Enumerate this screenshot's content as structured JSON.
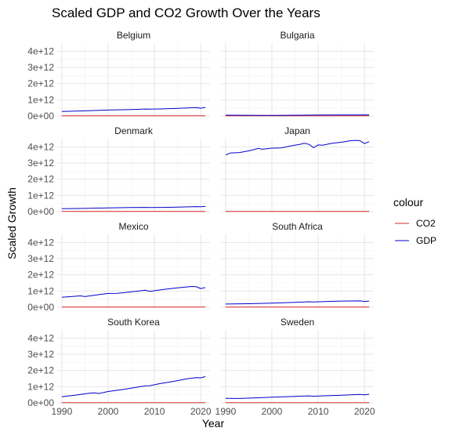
{
  "chart_data": {
    "type": "line",
    "title": "Scaled GDP and CO2 Growth Over the Years",
    "xlabel": "Year",
    "ylabel": "Scaled Growth",
    "xlim": [
      1990,
      2020
    ],
    "ylim": [
      0,
      4500000000000.0
    ],
    "x_ticks": [
      1990,
      2000,
      2010,
      2020
    ],
    "x_tick_labels": [
      "1990",
      "2000",
      "2010",
      "2020"
    ],
    "y_ticks": [
      0,
      1000000000000.0,
      2000000000000.0,
      3000000000000.0,
      4000000000000.0
    ],
    "y_tick_labels": [
      "0e+00",
      "1e+12",
      "2e+12",
      "3e+12",
      "4e+12"
    ],
    "grid": true,
    "legend": {
      "title": "colour",
      "position": "right",
      "entries": [
        {
          "label": "CO2",
          "color": "#d62728"
        },
        {
          "label": "GDP",
          "color": "#0000cc"
        }
      ]
    },
    "facets": [
      {
        "name": "Belgium",
        "gdp": [
          [
            1990,
            280000000000.0
          ],
          [
            1995,
            320000000000.0
          ],
          [
            2000,
            370000000000.0
          ],
          [
            2005,
            400000000000.0
          ],
          [
            2008,
            430000000000.0
          ],
          [
            2009,
            420000000000.0
          ],
          [
            2012,
            440000000000.0
          ],
          [
            2015,
            470000000000.0
          ],
          [
            2019,
            520000000000.0
          ],
          [
            2020,
            480000000000.0
          ],
          [
            2021,
            530000000000.0
          ]
        ],
        "co2": [
          [
            1990,
            10000000000.0
          ],
          [
            2021,
            10000000000.0
          ]
        ]
      },
      {
        "name": "Bulgaria",
        "gdp": [
          [
            1990,
            50000000000.0
          ],
          [
            2000,
            40000000000.0
          ],
          [
            2010,
            60000000000.0
          ],
          [
            2021,
            70000000000.0
          ]
        ],
        "co2": [
          [
            1990,
            10000000000.0
          ],
          [
            2021,
            10000000000.0
          ]
        ]
      },
      {
        "name": "Denmark",
        "gdp": [
          [
            1990,
            180000000000.0
          ],
          [
            1995,
            200000000000.0
          ],
          [
            2000,
            230000000000.0
          ],
          [
            2005,
            250000000000.0
          ],
          [
            2008,
            260000000000.0
          ],
          [
            2009,
            250000000000.0
          ],
          [
            2012,
            260000000000.0
          ],
          [
            2015,
            280000000000.0
          ],
          [
            2019,
            310000000000.0
          ],
          [
            2020,
            300000000000.0
          ],
          [
            2021,
            320000000000.0
          ]
        ],
        "co2": [
          [
            1990,
            10000000000.0
          ],
          [
            2021,
            10000000000.0
          ]
        ]
      },
      {
        "name": "Japan",
        "gdp": [
          [
            1990,
            3500000000000.0
          ],
          [
            1991,
            3620000000000.0
          ],
          [
            1993,
            3650000000000.0
          ],
          [
            1995,
            3750000000000.0
          ],
          [
            1997,
            3900000000000.0
          ],
          [
            1998,
            3850000000000.0
          ],
          [
            2000,
            3920000000000.0
          ],
          [
            2002,
            3930000000000.0
          ],
          [
            2004,
            4050000000000.0
          ],
          [
            2006,
            4150000000000.0
          ],
          [
            2007,
            4220000000000.0
          ],
          [
            2008,
            4150000000000.0
          ],
          [
            2009,
            3950000000000.0
          ],
          [
            2010,
            4120000000000.0
          ],
          [
            2011,
            4100000000000.0
          ],
          [
            2013,
            4220000000000.0
          ],
          [
            2015,
            4280000000000.0
          ],
          [
            2017,
            4380000000000.0
          ],
          [
            2018,
            4400000000000.0
          ],
          [
            2019,
            4380000000000.0
          ],
          [
            2020,
            4200000000000.0
          ],
          [
            2021,
            4320000000000.0
          ]
        ],
        "co2": [
          [
            1990,
            10000000000.0
          ],
          [
            2021,
            10000000000.0
          ]
        ]
      },
      {
        "name": "Mexico",
        "gdp": [
          [
            1990,
            620000000000.0
          ],
          [
            1994,
            700000000000.0
          ],
          [
            1995,
            660000000000.0
          ],
          [
            1998,
            780000000000.0
          ],
          [
            2000,
            850000000000.0
          ],
          [
            2002,
            860000000000.0
          ],
          [
            2005,
            950000000000.0
          ],
          [
            2008,
            1050000000000.0
          ],
          [
            2009,
            980000000000.0
          ],
          [
            2012,
            1100000000000.0
          ],
          [
            2015,
            1200000000000.0
          ],
          [
            2018,
            1280000000000.0
          ],
          [
            2019,
            1270000000000.0
          ],
          [
            2020,
            1150000000000.0
          ],
          [
            2021,
            1220000000000.0
          ]
        ],
        "co2": [
          [
            1990,
            10000000000.0
          ],
          [
            2021,
            10000000000.0
          ]
        ]
      },
      {
        "name": "South Africa",
        "gdp": [
          [
            1990,
            200000000000.0
          ],
          [
            1995,
            220000000000.0
          ],
          [
            2000,
            250000000000.0
          ],
          [
            2005,
            300000000000.0
          ],
          [
            2008,
            340000000000.0
          ],
          [
            2009,
            330000000000.0
          ],
          [
            2012,
            360000000000.0
          ],
          [
            2015,
            380000000000.0
          ],
          [
            2019,
            390000000000.0
          ],
          [
            2020,
            360000000000.0
          ],
          [
            2021,
            380000000000.0
          ]
        ],
        "co2": [
          [
            1990,
            10000000000.0
          ],
          [
            2021,
            10000000000.0
          ]
        ]
      },
      {
        "name": "South Korea",
        "gdp": [
          [
            1990,
            380000000000.0
          ],
          [
            1993,
            480000000000.0
          ],
          [
            1996,
            600000000000.0
          ],
          [
            1997,
            620000000000.0
          ],
          [
            1998,
            580000000000.0
          ],
          [
            2000,
            700000000000.0
          ],
          [
            2003,
            820000000000.0
          ],
          [
            2006,
            960000000000.0
          ],
          [
            2008,
            1050000000000.0
          ],
          [
            2009,
            1060000000000.0
          ],
          [
            2011,
            1180000000000.0
          ],
          [
            2014,
            1320000000000.0
          ],
          [
            2017,
            1480000000000.0
          ],
          [
            2019,
            1560000000000.0
          ],
          [
            2020,
            1550000000000.0
          ],
          [
            2021,
            1620000000000.0
          ]
        ],
        "co2": [
          [
            1990,
            10000000000.0
          ],
          [
            2021,
            10000000000.0
          ]
        ]
      },
      {
        "name": "Sweden",
        "gdp": [
          [
            1990,
            280000000000.0
          ],
          [
            1993,
            270000000000.0
          ],
          [
            1996,
            300000000000.0
          ],
          [
            2000,
            350000000000.0
          ],
          [
            2005,
            400000000000.0
          ],
          [
            2008,
            430000000000.0
          ],
          [
            2009,
            410000000000.0
          ],
          [
            2012,
            440000000000.0
          ],
          [
            2015,
            470000000000.0
          ],
          [
            2019,
            520000000000.0
          ],
          [
            2020,
            500000000000.0
          ],
          [
            2021,
            530000000000.0
          ]
        ],
        "co2": [
          [
            1990,
            10000000000.0
          ],
          [
            2021,
            10000000000.0
          ]
        ]
      }
    ]
  }
}
